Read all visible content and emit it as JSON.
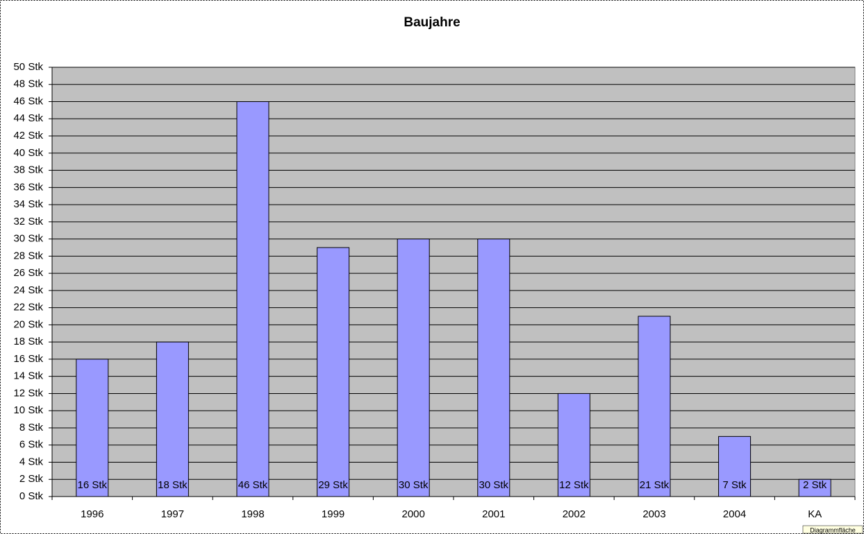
{
  "chart_data": {
    "type": "bar",
    "title": "Baujahre",
    "categories": [
      "1996",
      "1997",
      "1998",
      "1999",
      "2000",
      "2001",
      "2002",
      "2003",
      "2004",
      "KA"
    ],
    "values": [
      16,
      18,
      46,
      29,
      30,
      30,
      12,
      21,
      7,
      2
    ],
    "value_labels": [
      "16 Stk",
      "18 Stk",
      "46 Stk",
      "29 Stk",
      "30 Stk",
      "30 Stk",
      "12 Stk",
      "21 Stk",
      "7 Stk",
      "2 Stk"
    ],
    "color": "#9999ff",
    "ylim": [
      0,
      50
    ],
    "yticks": [
      {
        "value": 0,
        "label": "0 Stk"
      },
      {
        "value": 2,
        "label": "2 Stk"
      },
      {
        "value": 4,
        "label": "4 Stk"
      },
      {
        "value": 6,
        "label": "6 Stk"
      },
      {
        "value": 8,
        "label": "8 Stk"
      },
      {
        "value": 10,
        "label": "10 Stk"
      },
      {
        "value": 12,
        "label": "12 Stk"
      },
      {
        "value": 14,
        "label": "14 Stk"
      },
      {
        "value": 16,
        "label": "16 Stk"
      },
      {
        "value": 18,
        "label": "18 Stk"
      },
      {
        "value": 20,
        "label": "20 Stk"
      },
      {
        "value": 22,
        "label": "22 Stk"
      },
      {
        "value": 24,
        "label": "24 Stk"
      },
      {
        "value": 26,
        "label": "26 Stk"
      },
      {
        "value": 28,
        "label": "28 Stk"
      },
      {
        "value": 30,
        "label": "30 Stk"
      },
      {
        "value": 32,
        "label": "32 Stk"
      },
      {
        "value": 34,
        "label": "34 Stk"
      },
      {
        "value": 36,
        "label": "36 Stk"
      },
      {
        "value": 38,
        "label": "38 Stk"
      },
      {
        "value": 40,
        "label": "40 Stk"
      },
      {
        "value": 42,
        "label": "42 Stk"
      },
      {
        "value": 44,
        "label": "44 Stk"
      },
      {
        "value": 46,
        "label": "46 Stk"
      },
      {
        "value": 48,
        "label": "48 Stk"
      },
      {
        "value": 50,
        "label": "50 Stk"
      }
    ],
    "grid": true,
    "plot_background": "#c0c0c0",
    "tooltip": "Diagrammfläche"
  }
}
